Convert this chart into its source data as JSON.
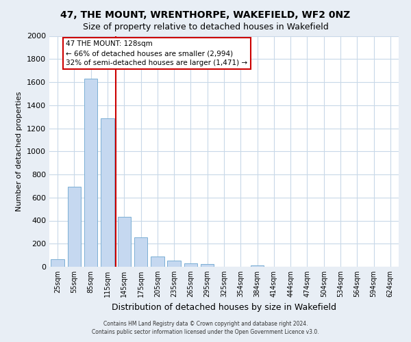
{
  "title": "47, THE MOUNT, WRENTHORPE, WAKEFIELD, WF2 0NZ",
  "subtitle": "Size of property relative to detached houses in Wakefield",
  "xlabel": "Distribution of detached houses by size in Wakefield",
  "ylabel": "Number of detached properties",
  "bar_color": "#c5d8f0",
  "bar_edge_color": "#7bafd4",
  "categories": [
    "25sqm",
    "55sqm",
    "85sqm",
    "115sqm",
    "145sqm",
    "175sqm",
    "205sqm",
    "235sqm",
    "265sqm",
    "295sqm",
    "325sqm",
    "354sqm",
    "384sqm",
    "414sqm",
    "444sqm",
    "474sqm",
    "504sqm",
    "534sqm",
    "564sqm",
    "594sqm",
    "624sqm"
  ],
  "values": [
    65,
    695,
    1630,
    1285,
    435,
    252,
    90,
    52,
    30,
    22,
    0,
    0,
    13,
    0,
    0,
    0,
    0,
    0,
    0,
    0,
    0
  ],
  "ylim": [
    0,
    2000
  ],
  "yticks": [
    0,
    200,
    400,
    600,
    800,
    1000,
    1200,
    1400,
    1600,
    1800,
    2000
  ],
  "marker_line_color": "#cc0000",
  "annotation_title": "47 THE MOUNT: 128sqm",
  "annotation_line1": "← 66% of detached houses are smaller (2,994)",
  "annotation_line2": "32% of semi-detached houses are larger (1,471) →",
  "annotation_box_color": "#ffffff",
  "annotation_box_edge": "#cc0000",
  "footer_line1": "Contains HM Land Registry data © Crown copyright and database right 2024.",
  "footer_line2": "Contains public sector information licensed under the Open Government Licence v3.0.",
  "background_color": "#e8eef5",
  "plot_background_color": "#ffffff",
  "grid_color": "#c8d8e8"
}
